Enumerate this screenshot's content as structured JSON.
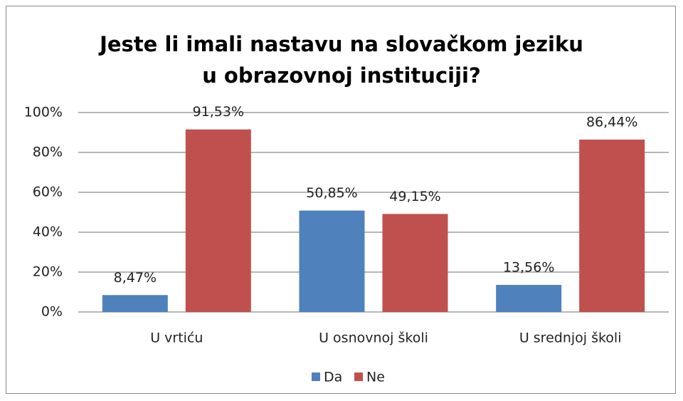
{
  "chart_data": {
    "type": "bar",
    "title": "Jeste li imali nastavu na slovačkom jeziku u obrazovnoj instituciji?",
    "categories": [
      "U vrtiću",
      "U osnovnoj školi",
      "U srednjoj školi"
    ],
    "series": [
      {
        "name": "Da",
        "color": "#4f81bd",
        "values": [
          8.47,
          50.85,
          13.56
        ],
        "value_labels": [
          "8,47%",
          "50,85%",
          "13,56%"
        ]
      },
      {
        "name": "Ne",
        "color": "#c0504d",
        "values": [
          91.53,
          49.15,
          86.44
        ],
        "value_labels": [
          "91,53%",
          "49,15%",
          "86,44%"
        ]
      }
    ],
    "ylim": [
      0,
      100
    ],
    "yticks": [
      {
        "value": 0,
        "label": "0%"
      },
      {
        "value": 20,
        "label": "20%"
      },
      {
        "value": 40,
        "label": "40%"
      },
      {
        "value": 60,
        "label": "60%"
      },
      {
        "value": 80,
        "label": "80%"
      },
      {
        "value": 100,
        "label": "100%"
      }
    ],
    "grid": true,
    "legend": "bottom"
  }
}
